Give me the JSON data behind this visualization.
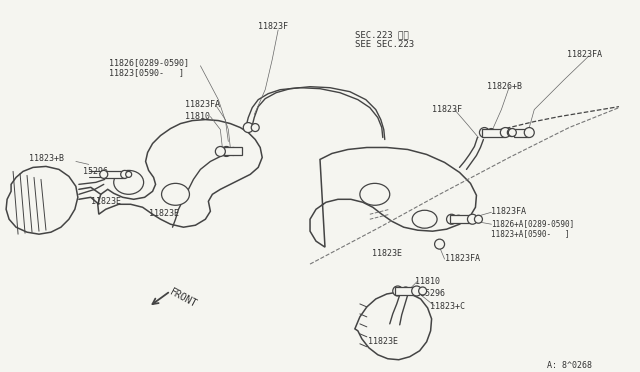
{
  "bg_color": "#f5f5f0",
  "line_color": "#444444",
  "text_color": "#333333",
  "part_number": "A: 8^0268",
  "labels": {
    "sec223_jp": "SEC.223参照",
    "sec223_en": "SEE SEC.223",
    "11823F_tl": "11823F",
    "11826_top": "11826[0289-0590]",
    "11823_top": "11823[0590-   ]",
    "11823FA_l1": "11823FA",
    "11810_l": "11810",
    "11823B": "11823+B",
    "15296_l": "15296",
    "11823E_l1": "11823E",
    "11823E_l2": "11823E",
    "11823FA_tr": "11823FA",
    "11826B": "11826+B",
    "11823F_r": "11823F",
    "11823FA_mr": "11823FA",
    "11826A": "11826+A[0289-0590]",
    "11823A": "11823+A[0590-   ]",
    "11823FA_br": "11823FA",
    "11810_b": "11810",
    "15296_b": "15296",
    "11823C": "11823+C",
    "11823E_b1": "11823E",
    "11823E_b2": "11823E",
    "front": "FRONT"
  }
}
